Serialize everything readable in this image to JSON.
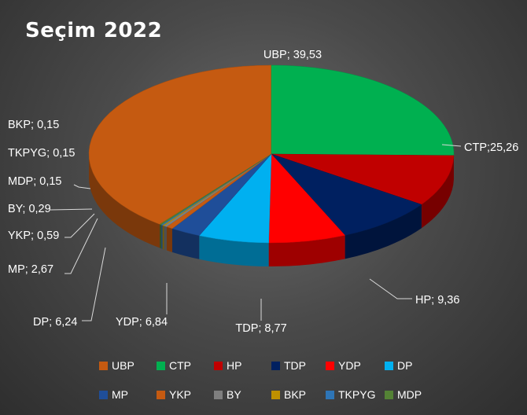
{
  "chart_data": {
    "type": "pie",
    "title": "Seçim 2022",
    "categories": [
      "UBP",
      "CTP",
      "HP",
      "TDP",
      "YDP",
      "DP",
      "MP",
      "YKP",
      "BY",
      "BKP",
      "TKPYG",
      "MDP"
    ],
    "values": [
      39.53,
      25.26,
      9.36,
      8.77,
      6.84,
      6.24,
      2.67,
      0.59,
      0.29,
      0.15,
      0.15,
      0.15
    ],
    "data_labels": [
      "UBP; 39,53",
      "CTP;25,26",
      "HP; 9,36",
      "TDP; 8,77",
      "YDP; 6,84",
      "DP; 6,24",
      "MP; 2,67",
      "YKP; 0,59",
      "BY; 0,29",
      "BKP; 0,15",
      "TKPYG; 0,15",
      "MDP; 0,15"
    ],
    "colors": [
      "#c55a11",
      "#00b050",
      "#c00000",
      "#002060",
      "#ff0000",
      "#00b0f0",
      "#1f4e99",
      "#c55a11",
      "#7f7f7f",
      "#bf9000",
      "#2e75b6",
      "#548235"
    ],
    "legend_position": "bottom",
    "style": "3d-pie"
  }
}
